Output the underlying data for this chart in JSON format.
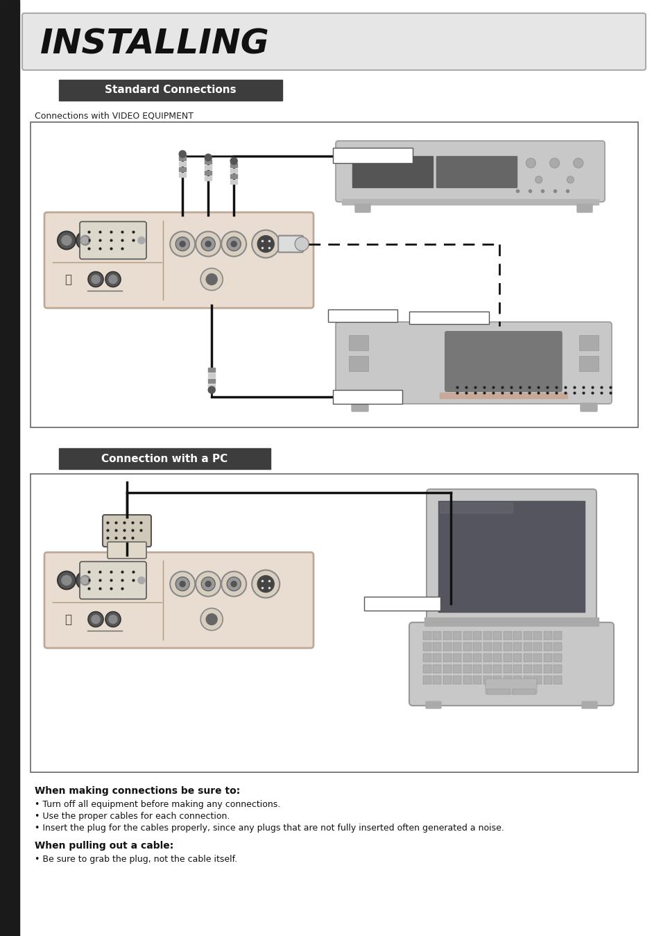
{
  "bg_color": "#ffffff",
  "title": "INSTALLING",
  "title_bg": "#e6e6e6",
  "title_border": "#aaaaaa",
  "title_color": "#111111",
  "left_bar_color": "#1a1a1a",
  "section1_label": "Standard Connections",
  "section1_bg": "#3d3d3d",
  "section1_color": "#ffffff",
  "section2_label": "Connection with a PC",
  "section2_bg": "#3d3d3d",
  "section2_color": "#ffffff",
  "video_label": "Connections with VIDEO EQUIPMENT",
  "panel_body_color": "#e8ddd0",
  "panel_border_color": "#b09880",
  "panel_inner_color": "#f0ebe0",
  "device_body_color": "#c8c8c8",
  "device_border_color": "#999999",
  "instructions_title1": "When making connections be sure to:",
  "instructions_bullets1": [
    "Turn off all equipment before making any connections.",
    "Use the proper cables for each connection.",
    "Insert the plug for the cables properly, since any plugs that are not fully inserted often generated a noise."
  ],
  "instructions_title2": "When pulling out a cable:",
  "instructions_bullets2": [
    "Be sure to grab the plug, not the cable itself."
  ]
}
